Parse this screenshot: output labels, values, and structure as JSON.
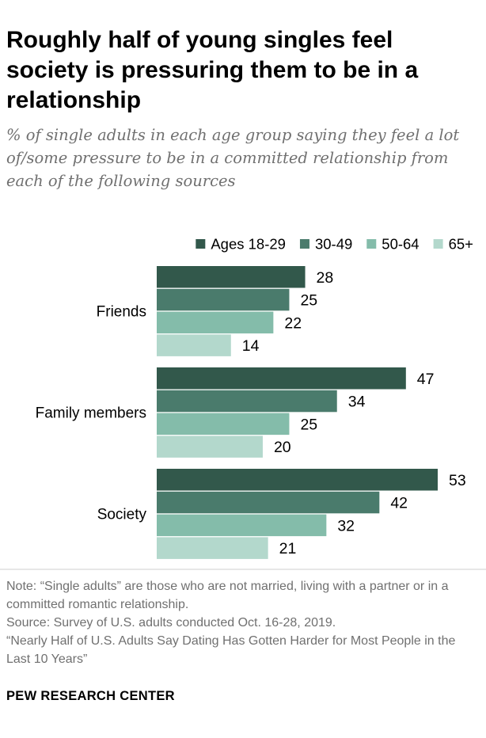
{
  "title": "Roughly half of young singles feel society is pressuring them to be in a relationship",
  "subtitle": "% of single adults in each age group saying they feel a lot of/some pressure to be in a committed relationship from each of the following sources",
  "notes": {
    "note": "Note: “Single adults” are those who are not married, living with a partner or in a committed romantic relationship.",
    "source": "Source: Survey of U.S. adults conducted Oct. 16-28, 2019.",
    "report": "“Nearly Half of U.S. Adults Say Dating Has Gotten Harder for Most People in the Last 10 Years”"
  },
  "brand": "PEW RESEARCH CENTER",
  "chart_data": {
    "type": "bar",
    "orientation": "horizontal",
    "categories": [
      "Friends",
      "Family members",
      "Society"
    ],
    "series": [
      {
        "name": "Ages 18-29",
        "color": "#32584b",
        "values": [
          28,
          47,
          53
        ]
      },
      {
        "name": "30-49",
        "color": "#4a7b6c",
        "values": [
          25,
          34,
          42
        ]
      },
      {
        "name": "50-64",
        "color": "#84bcaa",
        "values": [
          22,
          25,
          32
        ]
      },
      {
        "name": "65+",
        "color": "#b3d8cc",
        "values": [
          14,
          20,
          21
        ]
      }
    ],
    "xlim": [
      0,
      60
    ],
    "grid": false,
    "legend_position": "top",
    "data_labels": true
  }
}
